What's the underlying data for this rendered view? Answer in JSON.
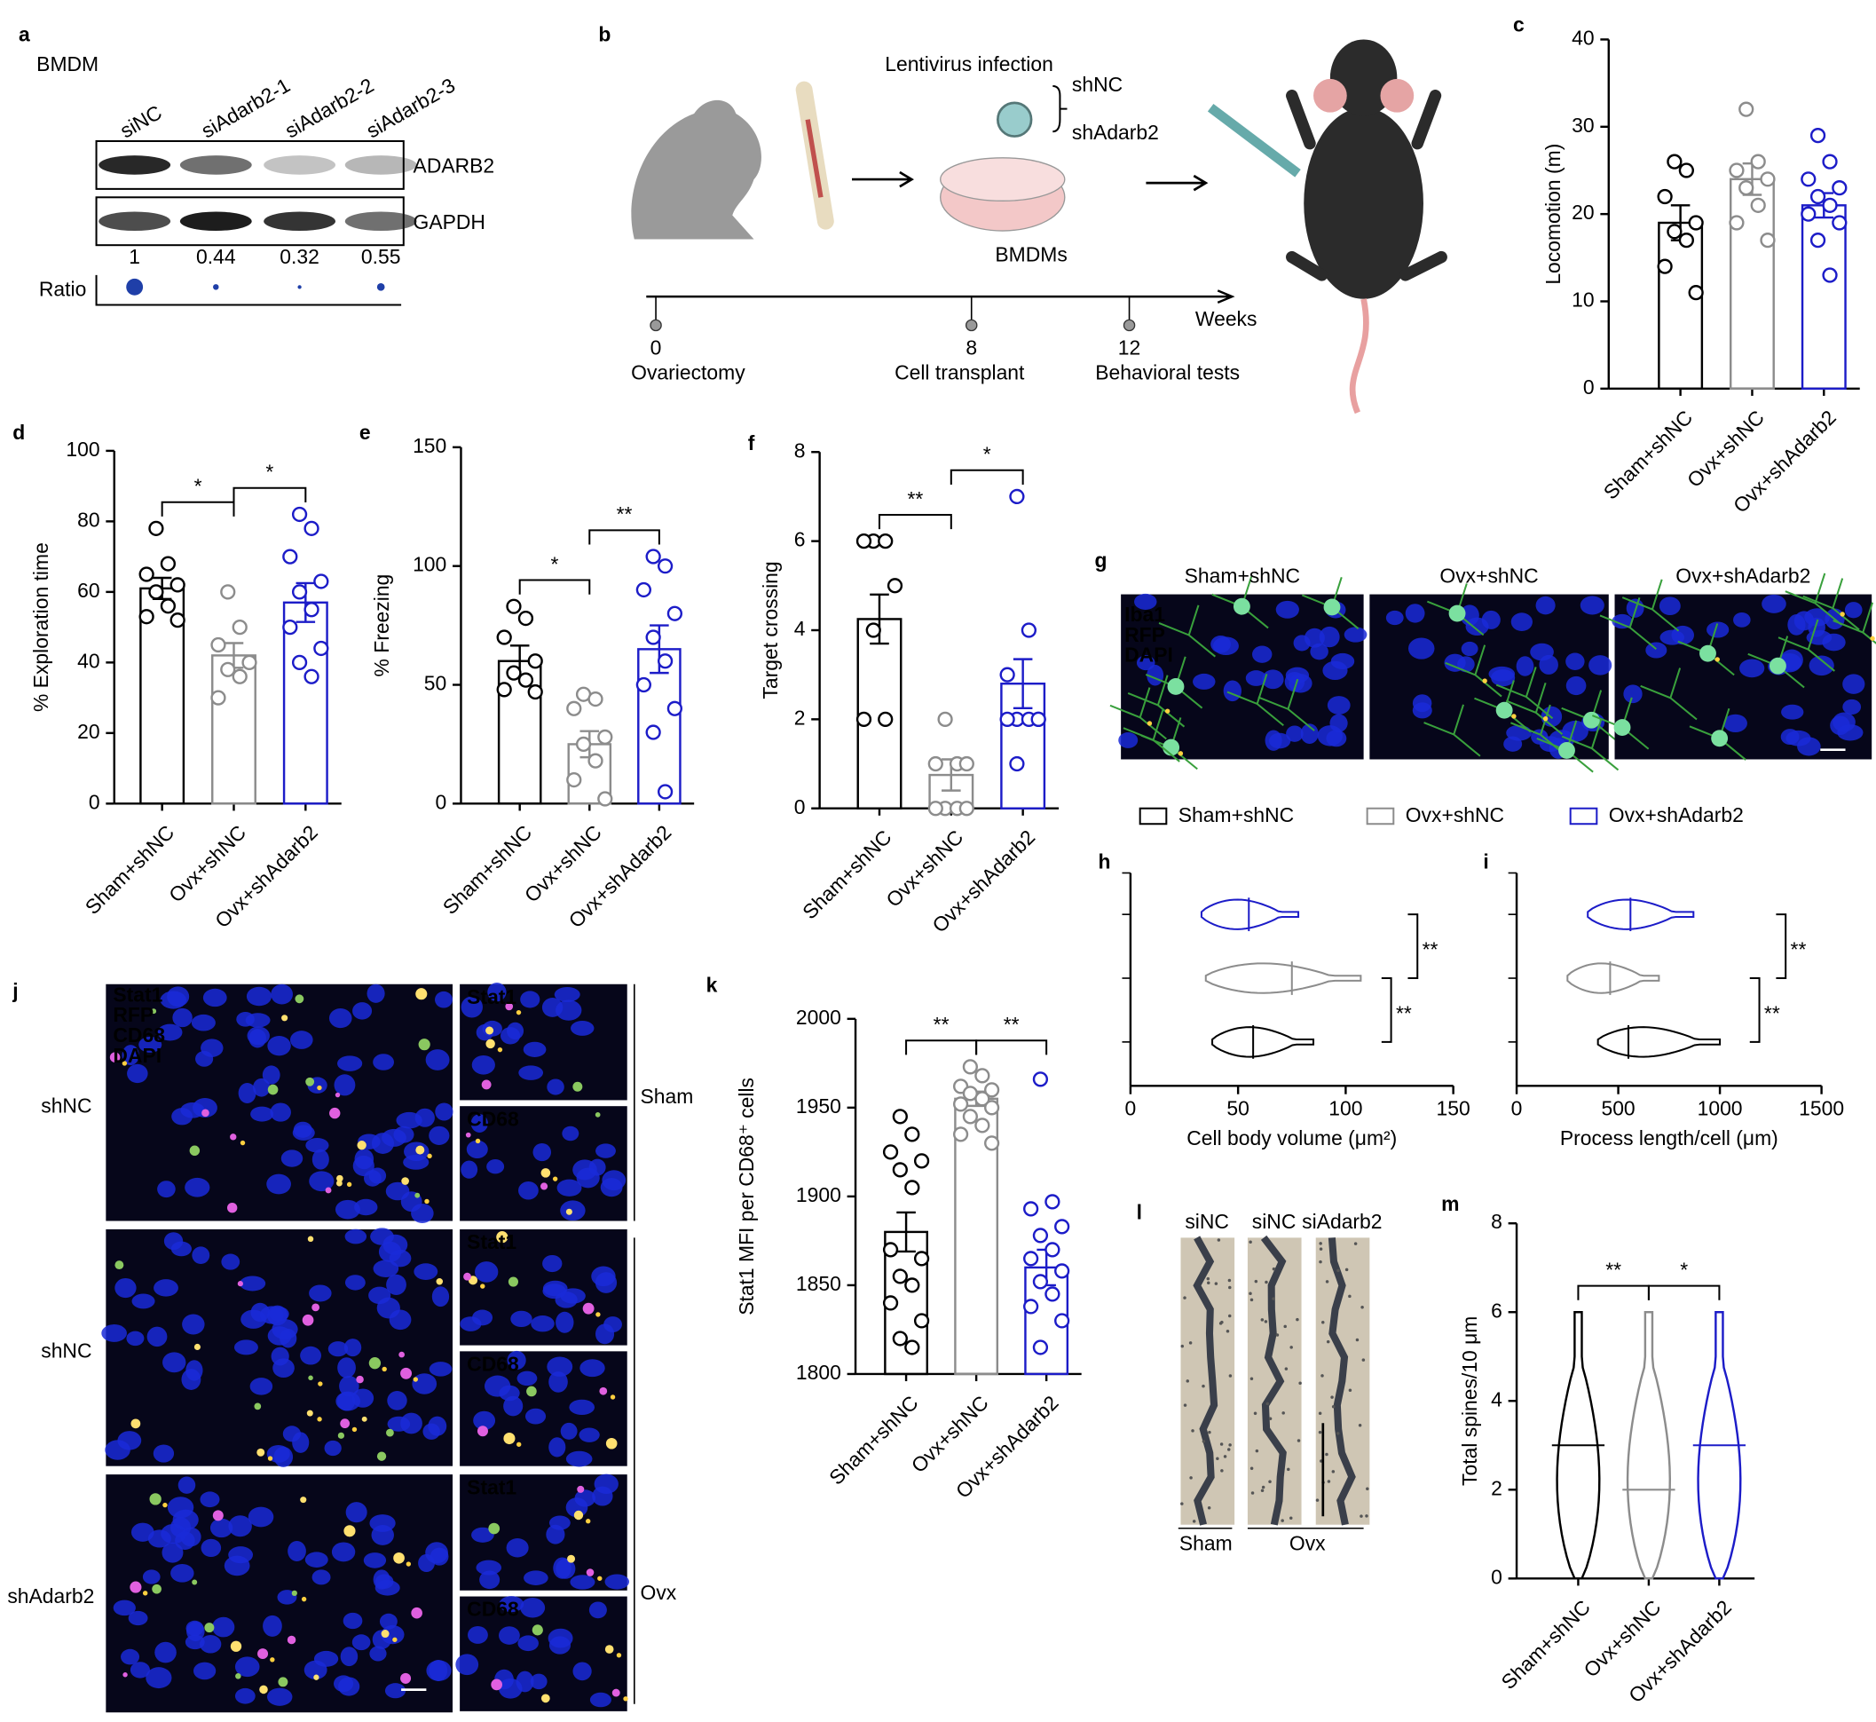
{
  "panel_labels": [
    "a",
    "b",
    "c",
    "d",
    "e",
    "f",
    "g",
    "h",
    "i",
    "j",
    "k",
    "l",
    "m"
  ],
  "blot": {
    "cell_type": "BMDM",
    "lanes": [
      "siNC",
      "siAdarb2-1",
      "siAdarb2-2",
      "siAdarb2-3"
    ],
    "proteins": [
      "ADARB2",
      "GAPDH"
    ],
    "ratio_label": "Ratio",
    "ratios": [
      1,
      0.44,
      0.32,
      0.55
    ],
    "dot_color": "#1f3fa8"
  },
  "schematic": {
    "infection": "Lentivirus infection",
    "vectors": [
      "shNC",
      "shAdarb2"
    ],
    "cells": "BMDMs",
    "unit": "Weeks",
    "timeline": [
      {
        "week": 0,
        "event": "Ovariectomy"
      },
      {
        "week": 8,
        "event": "Cell transplant"
      },
      {
        "week": 12,
        "event": "Behavioral tests"
      }
    ]
  },
  "chart_data": [
    {
      "type": "bar",
      "categories": [
        "Sham+shNC",
        "Ovx+shNC",
        "Ovx+shAdarb2"
      ],
      "colors": [
        "#000000",
        "#8c8c8c",
        "#1c1cc8"
      ],
      "ylabel": "Locomotion (m)",
      "ylim": [
        0,
        40
      ],
      "yticks": [
        0,
        10,
        20,
        30,
        40
      ],
      "values": [
        19,
        24,
        21
      ],
      "errors": [
        2,
        1.8,
        1.4
      ],
      "points": [
        [
          26,
          25,
          22,
          19,
          18,
          17,
          14,
          11
        ],
        [
          32,
          26,
          25,
          24,
          23,
          21,
          19,
          17
        ],
        [
          29,
          26,
          24,
          23,
          22,
          21,
          20,
          19,
          17,
          13
        ]
      ],
      "brackets": []
    },
    {
      "type": "bar",
      "categories": [
        "Sham+shNC",
        "Ovx+shNC",
        "Ovx+shAdarb2"
      ],
      "colors": [
        "#000000",
        "#8c8c8c",
        "#1c1cc8"
      ],
      "ylabel": "% Exploration time",
      "ylim": [
        0,
        100
      ],
      "yticks": [
        0,
        20,
        40,
        60,
        80,
        100
      ],
      "values": [
        61,
        42,
        57
      ],
      "errors": [
        3,
        3.5,
        5.5
      ],
      "points": [
        [
          78,
          68,
          65,
          62,
          60,
          56,
          53,
          52
        ],
        [
          60,
          50,
          45,
          40,
          38,
          36,
          30
        ],
        [
          82,
          78,
          70,
          63,
          60,
          55,
          50,
          44,
          40,
          36
        ]
      ],
      "brackets": [
        {
          "between": [
            0,
            1
          ],
          "label": "*"
        },
        {
          "between": [
            1,
            2
          ],
          "label": "*"
        }
      ]
    },
    {
      "type": "bar",
      "categories": [
        "Sham+shNC",
        "Ovx+shNC",
        "Ovx+shAdarb2"
      ],
      "colors": [
        "#000000",
        "#8c8c8c",
        "#1c1cc8"
      ],
      "ylabel": "% Freezing",
      "ylim": [
        0,
        150
      ],
      "yticks": [
        0,
        50,
        100,
        150
      ],
      "values": [
        60,
        25,
        65
      ],
      "errors": [
        6.5,
        5.5,
        10
      ],
      "points": [
        [
          83,
          78,
          70,
          60,
          55,
          52,
          48,
          47
        ],
        [
          46,
          44,
          40,
          28,
          25,
          18,
          10,
          2
        ],
        [
          104,
          100,
          90,
          80,
          70,
          60,
          50,
          40,
          30,
          5
        ]
      ],
      "brackets": [
        {
          "between": [
            0,
            1
          ],
          "label": "*"
        },
        {
          "between": [
            1,
            2
          ],
          "label": "**"
        }
      ]
    },
    {
      "type": "bar",
      "categories": [
        "Sham+shNC",
        "Ovx+shNC",
        "Ovx+shAdarb2"
      ],
      "colors": [
        "#000000",
        "#8c8c8c",
        "#1c1cc8"
      ],
      "ylabel": "Target crossing",
      "ylim": [
        0,
        8
      ],
      "yticks": [
        0,
        2,
        4,
        6,
        8
      ],
      "values": [
        4.25,
        0.75,
        2.8
      ],
      "errors": [
        0.55,
        0.35,
        0.55
      ],
      "points": [
        [
          6,
          6,
          6,
          5,
          4,
          2,
          2
        ],
        [
          2,
          1,
          1,
          1,
          0,
          0,
          0,
          0
        ],
        [
          7,
          4,
          3,
          2,
          2,
          2,
          2,
          2,
          1
        ]
      ],
      "brackets": [
        {
          "between": [
            0,
            1
          ],
          "label": "**"
        },
        {
          "between": [
            1,
            2
          ],
          "label": "*"
        }
      ]
    },
    {
      "type": "violin",
      "xlabel": "Cell body volume (μm²)",
      "xlim": [
        0,
        150
      ],
      "xticks": [
        0,
        50,
        100,
        150
      ],
      "series": [
        {
          "name": "Sham+shNC",
          "color": "#000000",
          "min": 38,
          "median": 57,
          "max": 85
        },
        {
          "name": "Ovx+shNC",
          "color": "#8c8c8c",
          "min": 35,
          "median": 75,
          "max": 107
        },
        {
          "name": "Ovx+shAdarb2",
          "color": "#1c1cc8",
          "min": 33,
          "median": 55,
          "max": 78
        }
      ],
      "brackets": [
        {
          "between": [
            1,
            2
          ],
          "label": "**"
        },
        {
          "between": [
            0,
            1
          ],
          "label": "**"
        }
      ]
    },
    {
      "type": "violin",
      "xlabel": "Process length/cell (μm)",
      "xlim": [
        0,
        1500
      ],
      "xticks": [
        0,
        500,
        1000,
        1500
      ],
      "series": [
        {
          "color": "#000000",
          "min": 400,
          "median": 550,
          "max": 1000
        },
        {
          "color": "#8c8c8c",
          "min": 250,
          "median": 460,
          "max": 700
        },
        {
          "color": "#1c1cc8",
          "min": 350,
          "median": 560,
          "max": 870
        }
      ],
      "brackets": [
        {
          "between": [
            1,
            2
          ],
          "label": "**"
        },
        {
          "between": [
            0,
            1
          ],
          "label": "**"
        }
      ]
    },
    {
      "type": "bar",
      "categories": [
        "Sham+shNC",
        "Ovx+shNC",
        "Ovx+shAdarb2"
      ],
      "colors": [
        "#000000",
        "#8c8c8c",
        "#1c1cc8"
      ],
      "ylabel": "Stat1 MFI per CD68⁺ cells",
      "ylim": [
        1800,
        2000
      ],
      "yticks": [
        1800,
        1850,
        1900,
        1950,
        2000
      ],
      "values": [
        1880,
        1955,
        1860
      ],
      "errors": [
        11,
        4,
        10
      ],
      "points": [
        [
          1945,
          1935,
          1925,
          1920,
          1915,
          1905,
          1870,
          1865,
          1855,
          1850,
          1840,
          1830,
          1820,
          1815
        ],
        [
          1973,
          1968,
          1962,
          1960,
          1958,
          1955,
          1952,
          1950,
          1945,
          1940,
          1935,
          1930
        ],
        [
          1966,
          1897,
          1893,
          1883,
          1878,
          1870,
          1865,
          1858,
          1852,
          1845,
          1838,
          1830,
          1815
        ]
      ],
      "brackets": [
        {
          "between": [
            0,
            1
          ],
          "label": "**"
        },
        {
          "between": [
            1,
            2
          ],
          "label": "**"
        }
      ]
    },
    {
      "type": "violin",
      "categories": [
        "Sham+shNC",
        "Ovx+shNC",
        "Ovx+shAdarb2"
      ],
      "colors": [
        "#000000",
        "#8c8c8c",
        "#1c1cc8"
      ],
      "ylabel": "Total spines/10 μm",
      "ylim": [
        0,
        8
      ],
      "yticks": [
        0,
        2,
        4,
        6,
        8
      ],
      "min": [
        0,
        0,
        0
      ],
      "median": [
        3,
        2,
        3
      ],
      "max": [
        6,
        6,
        6
      ],
      "brackets": [
        {
          "between": [
            0,
            1
          ],
          "label": "**"
        },
        {
          "between": [
            1,
            2
          ],
          "label": "*"
        }
      ]
    }
  ],
  "microglia_images": {
    "titles": [
      "Sham+shNC",
      "Ovx+shNC",
      "Ovx+shAdarb2"
    ],
    "stains": [
      "Iba1",
      "RFP",
      "DAPI"
    ],
    "stain_colors": [
      "#2ec84a",
      "#ff3a1a",
      "#2040ff"
    ]
  },
  "stat1_images": {
    "stains": [
      "Stat1",
      "RFP",
      "CD68",
      "DAPI"
    ],
    "stain_colors": [
      "#1aa86a",
      "#ff2020",
      "#e020e0",
      "#2040ff"
    ],
    "rows": [
      "shNC",
      "shNC",
      "shAdarb2"
    ],
    "insets": [
      "Stat1",
      "CD68"
    ],
    "groups": [
      "Sham",
      "Ovx"
    ]
  },
  "spine_images": {
    "columns": [
      "siNC",
      "siNC",
      "siAdarb2"
    ],
    "groups": [
      "Sham",
      "Ovx"
    ]
  }
}
